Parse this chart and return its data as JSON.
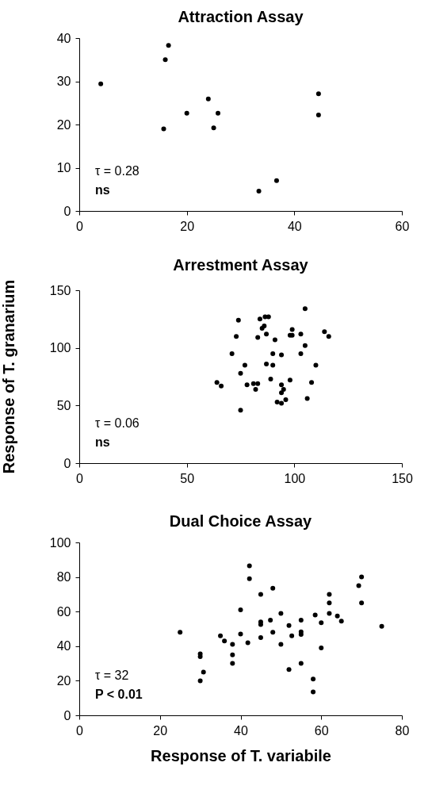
{
  "chart_data": [
    {
      "type": "scatter",
      "title": "Attraction Assay",
      "marker": "circle",
      "grid": false,
      "xlim": [
        0,
        60
      ],
      "xticks": [
        0,
        20,
        40,
        60
      ],
      "ylim": [
        0,
        40
      ],
      "yticks": [
        0,
        10,
        20,
        30,
        40
      ],
      "annotations": [
        "τ = 0.28",
        "ns"
      ],
      "series": [
        {
          "color": "#000000",
          "x": [
            4,
            16,
            16.6,
            15.7,
            20,
            24,
            25,
            25.8,
            33.4,
            36.7,
            44.5,
            44.5
          ],
          "values": [
            29.4,
            35,
            38.3,
            19,
            22.6,
            25.9,
            19.2,
            22.6,
            4.6,
            7,
            27.1,
            22.2
          ]
        }
      ]
    },
    {
      "type": "scatter",
      "title": "Arrestment Assay",
      "ylabel": "Response of T. granarium",
      "marker": "circle",
      "grid": false,
      "xlim": [
        0,
        150
      ],
      "xticks": [
        0,
        50,
        100,
        150
      ],
      "ylim": [
        0,
        150
      ],
      "yticks": [
        0,
        50,
        100,
        150
      ],
      "annotations": [
        "τ = 0.06",
        "ns"
      ],
      "series": [
        {
          "color": "#000000",
          "x": [
            105,
            74,
            84,
            86.4,
            88,
            86,
            85,
            87,
            73,
            83,
            91,
            99,
            98,
            99,
            103,
            114,
            116,
            105,
            71,
            90,
            94,
            103,
            77,
            87,
            90,
            110,
            75,
            89,
            98,
            64,
            66,
            78,
            81,
            83,
            82,
            94,
            95,
            94,
            108,
            92,
            94,
            96,
            106,
            75
          ],
          "values": [
            134,
            124,
            125,
            127,
            127,
            119,
            117,
            112,
            110,
            109,
            107,
            116,
            111,
            111,
            112,
            114,
            110,
            102,
            95,
            95,
            94,
            95,
            85,
            86,
            85,
            85,
            78,
            73,
            72,
            70,
            67,
            68,
            69,
            69,
            64,
            68,
            64,
            61,
            70,
            53,
            52,
            55,
            56,
            46
          ]
        }
      ]
    },
    {
      "type": "scatter",
      "title": "Dual Choice Assay",
      "xlabel": "Response of T. variabile",
      "marker": "circle",
      "grid": false,
      "xlim": [
        0,
        80
      ],
      "xticks": [
        0,
        20,
        40,
        60,
        80
      ],
      "ylim": [
        0,
        100
      ],
      "yticks": [
        0,
        20,
        40,
        60,
        80,
        100
      ],
      "annotations": [
        "τ = 32",
        "P < 0.01"
      ],
      "series": [
        {
          "color": "#000000",
          "x": [
            25,
            30,
            30,
            30.8,
            30,
            35,
            36,
            38,
            38,
            38,
            40,
            40,
            41.8,
            42.2,
            42.2,
            45,
            45,
            45,
            45,
            47.4,
            48,
            48,
            50,
            50,
            52,
            52,
            52.7,
            55,
            55,
            55,
            55,
            58,
            58,
            58.5,
            60,
            60,
            62,
            62,
            62,
            64,
            65,
            69.3,
            70,
            70,
            75
          ],
          "values": [
            48,
            35.5,
            34,
            25,
            20,
            46,
            43,
            41,
            35,
            30,
            61,
            47,
            42,
            86.5,
            79,
            70,
            54,
            52.5,
            45,
            55,
            73.5,
            48,
            59,
            41,
            52,
            26.5,
            46,
            55,
            48.3,
            46.8,
            30,
            21,
            13.5,
            58,
            53.5,
            39,
            70,
            65,
            59,
            57.5,
            54.5,
            75,
            80,
            65,
            51.5
          ]
        }
      ]
    }
  ]
}
